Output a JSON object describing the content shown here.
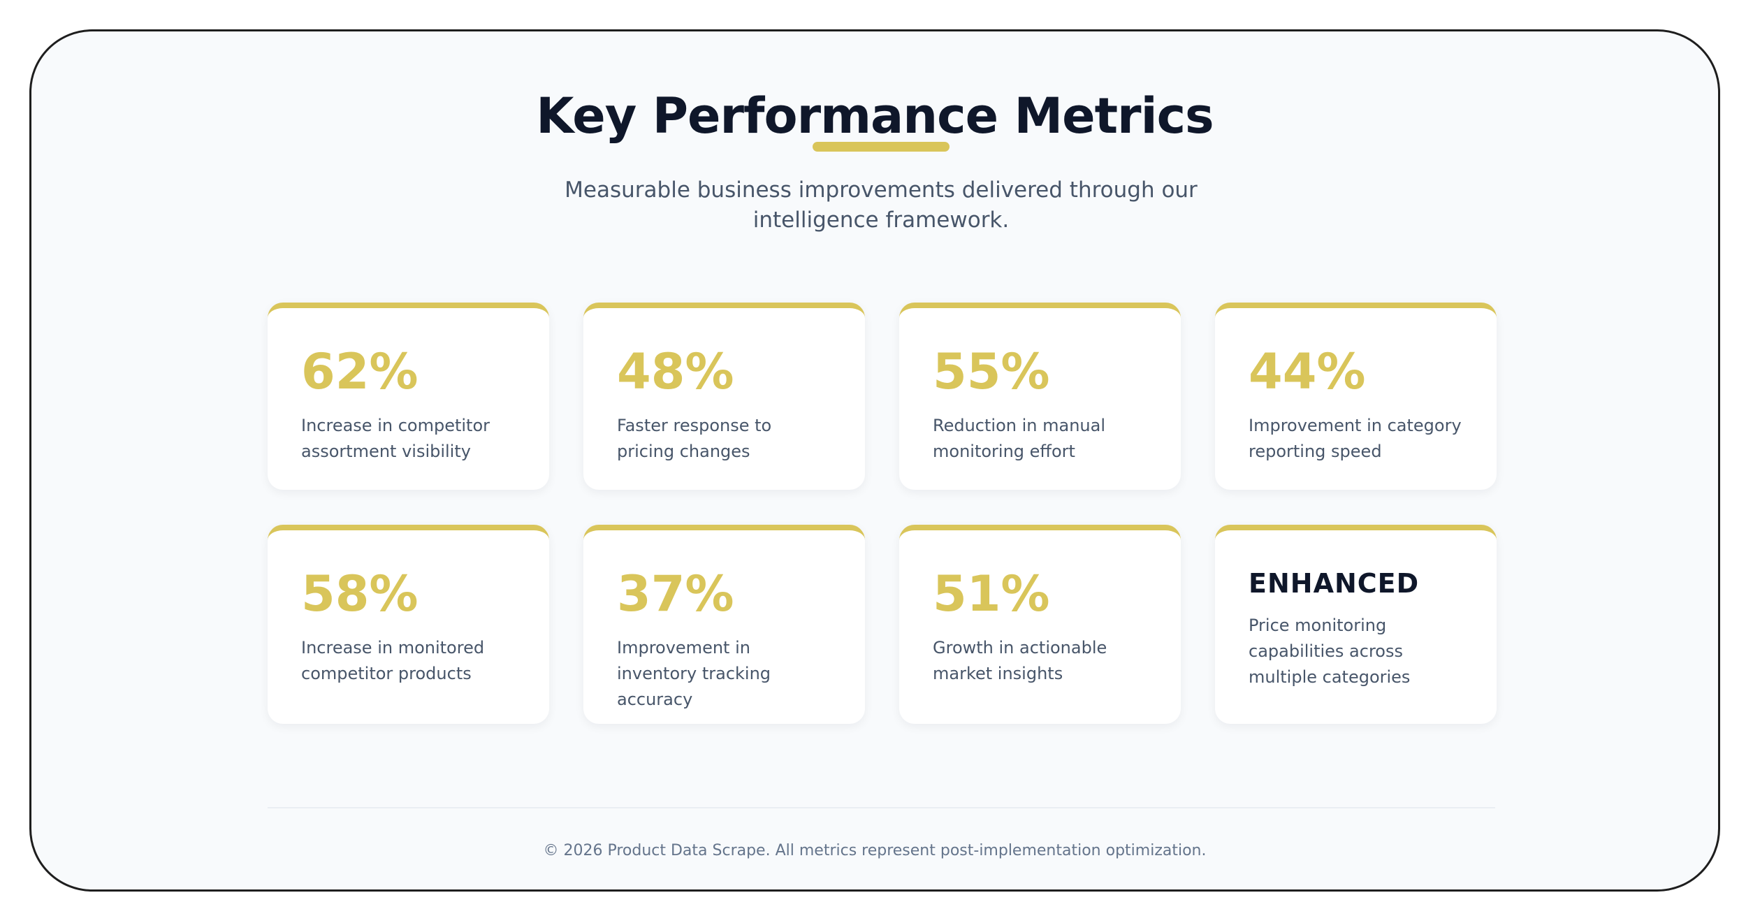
{
  "header": {
    "title": "Key Performance Metrics",
    "subtitle": "Measurable business improvements delivered through our intelligence framework."
  },
  "metrics": [
    {
      "value": "62%",
      "description": "Increase in competitor assortment visibility"
    },
    {
      "value": "48%",
      "description": "Faster response to pricing changes"
    },
    {
      "value": "55%",
      "description": "Reduction in manual monitoring effort"
    },
    {
      "value": "44%",
      "description": "Improvement in category reporting speed"
    },
    {
      "value": "58%",
      "description": "Increase in monitored competitor products"
    },
    {
      "value": "37%",
      "description": "Improvement in inventory tracking accuracy"
    },
    {
      "value": "51%",
      "description": "Growth in actionable market insights"
    },
    {
      "value": "ENHANCED",
      "description": "Price monitoring capabilities across multiple categories"
    }
  ],
  "footer": {
    "text": "© 2026 Product Data Scrape. All metrics represent post-implementation optimization."
  },
  "colors": {
    "accent": "#d9c55a",
    "title": "#0f172a",
    "body_text": "#475569",
    "background": "#f8fafc",
    "card": "#ffffff"
  }
}
